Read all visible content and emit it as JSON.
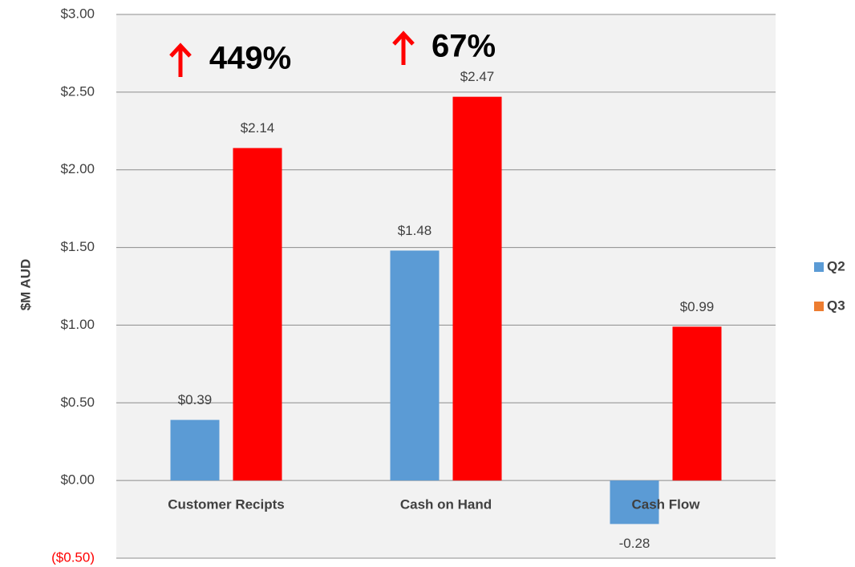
{
  "chart_data": {
    "type": "bar",
    "y_label": "$M AUD",
    "categories": [
      "Customer Recipts",
      "Cash on Hand",
      "Cash Flow"
    ],
    "series": [
      {
        "name": "Q2",
        "color": "#5b9bd5",
        "values": [
          0.39,
          1.48,
          -0.28
        ],
        "value_labels": [
          "$0.39",
          "$1.48",
          "-0.28"
        ]
      },
      {
        "name": "Q3",
        "color": "#ff0000",
        "legend_color": "#ed7d31",
        "values": [
          2.14,
          2.47,
          0.99
        ],
        "value_labels": [
          "$2.14",
          "$2.47",
          "$0.99"
        ]
      }
    ],
    "annotations": [
      {
        "text": "449%",
        "color": "#ff0000"
      },
      {
        "text": "67%",
        "color": "#ff0000"
      }
    ],
    "ylim": [
      -0.5,
      3.0
    ],
    "yticks": [
      {
        "value": -0.5,
        "label": "($0.50)"
      },
      {
        "value": 0,
        "label": "$0.00"
      },
      {
        "value": 0.5,
        "label": "$0.50"
      },
      {
        "value": 1.0,
        "label": "$1.00"
      },
      {
        "value": 1.5,
        "label": "$1.50"
      },
      {
        "value": 2.0,
        "label": "$2.00"
      },
      {
        "value": 2.5,
        "label": "$2.50"
      },
      {
        "value": 3.0,
        "label": "$3.00"
      }
    ],
    "negative_tick_color": "#ff0000",
    "grid": true,
    "legend": "right"
  }
}
